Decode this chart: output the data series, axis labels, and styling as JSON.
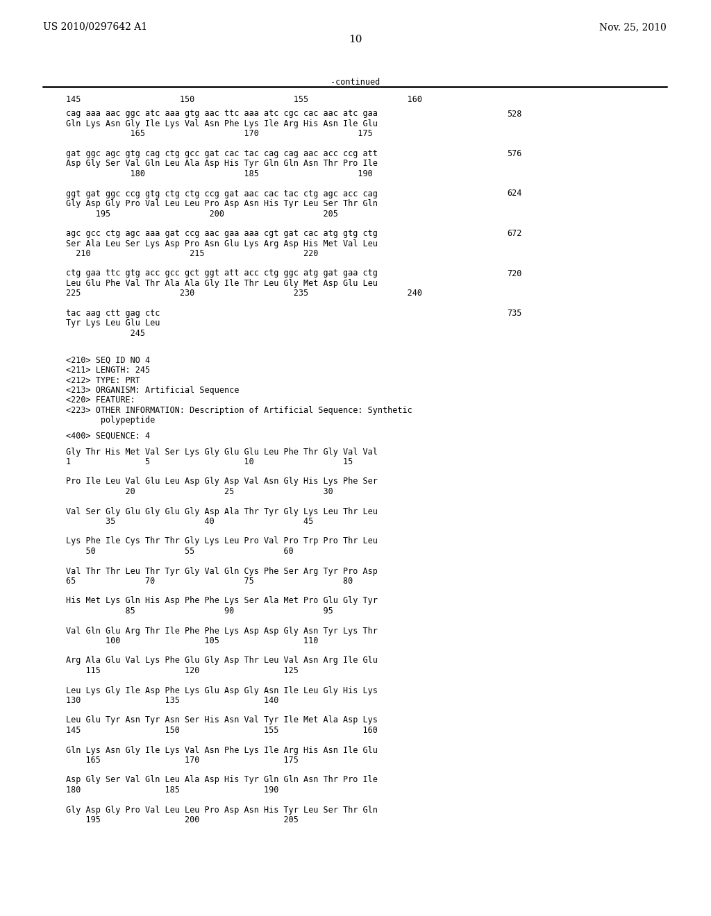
{
  "header_left": "US 2010/0297642 A1",
  "header_right": "Nov. 25, 2010",
  "page_number": "10",
  "continued_label": "-continued",
  "background_color": "#ffffff",
  "text_color": "#000000",
  "blocks_top": [
    {
      "ruler": "145                    150                    155                    160",
      "lines": [
        [
          "cag aaa aac ggc atc aaa gtg aac ttc aaa atc cgc cac aac atc gaa",
          "528"
        ],
        [
          "Gln Lys Asn Gly Ile Lys Val Asn Phe Lys Ile Arg His Asn Ile Glu",
          ""
        ],
        [
          "             165                    170                    175",
          ""
        ]
      ]
    },
    {
      "ruler": "",
      "lines": [
        [
          "gat ggc agc gtg cag ctg gcc gat cac tac cag cag aac acc ccg att",
          "576"
        ],
        [
          "Asp Gly Ser Val Gln Leu Ala Asp His Tyr Gln Gln Asn Thr Pro Ile",
          ""
        ],
        [
          "             180                    185                    190",
          ""
        ]
      ]
    },
    {
      "ruler": "",
      "lines": [
        [
          "ggt gat ggc ccg gtg ctg ctg ccg gat aac cac tac ctg agc acc cag",
          "624"
        ],
        [
          "Gly Asp Gly Pro Val Leu Leu Pro Asp Asn His Tyr Leu Ser Thr Gln",
          ""
        ],
        [
          "      195                    200                    205",
          ""
        ]
      ]
    },
    {
      "ruler": "",
      "lines": [
        [
          "agc gcc ctg agc aaa gat ccg aac gaa aaa cgt gat cac atg gtg ctg",
          "672"
        ],
        [
          "Ser Ala Leu Ser Lys Asp Pro Asn Glu Lys Arg Asp His Met Val Leu",
          ""
        ],
        [
          "  210                    215                    220",
          ""
        ]
      ]
    },
    {
      "ruler": "",
      "lines": [
        [
          "ctg gaa ttc gtg acc gcc gct ggt att acc ctg ggc atg gat gaa ctg",
          "720"
        ],
        [
          "Leu Glu Phe Val Thr Ala Ala Gly Ile Thr Leu Gly Met Asp Glu Leu",
          ""
        ],
        [
          "225                    230                    235                    240",
          ""
        ]
      ]
    },
    {
      "ruler": "",
      "lines": [
        [
          "tac aag ctt gag ctc",
          "735"
        ],
        [
          "Tyr Lys Leu Glu Leu",
          ""
        ],
        [
          "             245",
          ""
        ]
      ]
    }
  ],
  "seq_meta": [
    "<210> SEQ ID NO 4",
    "<211> LENGTH: 245",
    "<212> TYPE: PRT",
    "<213> ORGANISM: Artificial Sequence",
    "<220> FEATURE:",
    "<223> OTHER INFORMATION: Description of Artificial Sequence: Synthetic",
    "       polypeptide"
  ],
  "seq_label": "<400> SEQUENCE: 4",
  "seq4_blocks": [
    [
      "Gly Thr His Met Val Ser Lys Gly Glu Glu Leu Phe Thr Gly Val Val",
      "1               5                   10                  15"
    ],
    [
      "Pro Ile Leu Val Glu Leu Asp Gly Asp Val Asn Gly His Lys Phe Ser",
      "            20                  25                  30"
    ],
    [
      "Val Ser Gly Glu Gly Glu Gly Asp Ala Thr Tyr Gly Lys Leu Thr Leu",
      "        35                  40                  45"
    ],
    [
      "Lys Phe Ile Cys Thr Thr Gly Lys Leu Pro Val Pro Trp Pro Thr Leu",
      "    50                  55                  60"
    ],
    [
      "Val Thr Thr Leu Thr Tyr Gly Val Gln Cys Phe Ser Arg Tyr Pro Asp",
      "65              70                  75                  80"
    ],
    [
      "His Met Lys Gln His Asp Phe Phe Lys Ser Ala Met Pro Glu Gly Tyr",
      "            85                  90                  95"
    ],
    [
      "Val Gln Glu Arg Thr Ile Phe Phe Lys Asp Asp Gly Asn Tyr Lys Thr",
      "        100                 105                 110"
    ],
    [
      "Arg Ala Glu Val Lys Phe Glu Gly Asp Thr Leu Val Asn Arg Ile Glu",
      "    115                 120                 125"
    ],
    [
      "Leu Lys Gly Ile Asp Phe Lys Glu Asp Gly Asn Ile Leu Gly His Lys",
      "130                 135                 140"
    ],
    [
      "Leu Glu Tyr Asn Tyr Asn Ser His Asn Val Tyr Ile Met Ala Asp Lys",
      "145                 150                 155                 160"
    ],
    [
      "Gln Lys Asn Gly Ile Lys Val Asn Phe Lys Ile Arg His Asn Ile Glu",
      "    165                 170                 175"
    ],
    [
      "Asp Gly Ser Val Gln Leu Ala Asp His Tyr Gln Gln Asn Thr Pro Ile",
      "180                 185                 190"
    ],
    [
      "Gly Asp Gly Pro Val Leu Leu Pro Asp Asn His Tyr Leu Ser Thr Gln",
      "    195                 200                 205"
    ]
  ]
}
